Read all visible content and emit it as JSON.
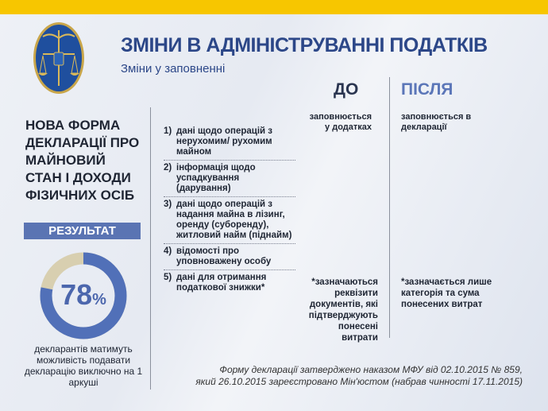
{
  "header": {
    "title": "ЗМІНИ В АДМІНІСТРУВАННІ ПОДАТКІВ",
    "subtitle": "Зміни у заповненні"
  },
  "columns": {
    "before": "ДО",
    "after": "ПІСЛЯ"
  },
  "left": {
    "heading": [
      "НОВА ФОРМА",
      "ДЕКЛАРАЦІЇ ПРО",
      "МАЙНОВИЙ",
      "СТАН І ДОХОДИ",
      "ФІЗИЧНИХ ОСІБ"
    ],
    "result_label": "РЕЗУЛЬТАТ",
    "percent": 78,
    "percent_text": "78",
    "percent_sign": "%",
    "note": "декларантів матимуть можливість подавати декларацію виключно на 1 аркуші",
    "colors": {
      "filled": "#5170b8",
      "rest": "#d8cfb0"
    }
  },
  "items": [
    {
      "num": "1)",
      "text": "дані щодо операцій з нерухомим/ рухомим майном"
    },
    {
      "num": "2)",
      "text": "інформація щодо успадкування (дарування)"
    },
    {
      "num": "3)",
      "text": "дані щодо операцій з надання майна в лізинг, оренду (суборенду), житловий найм (піднайм)"
    },
    {
      "num": "4)",
      "text": "відомості про уповноважену особу"
    },
    {
      "num": "5)",
      "text": "дані для отримання податкової знижки*"
    }
  ],
  "before": {
    "fill": "заповнюється у додатках",
    "note": "*зазначаються реквізити документів, які підтверджують понесені витрати"
  },
  "after": {
    "fill": "заповнюється в декларації",
    "note": "*зазначається лише категорія та сума понесених витрат"
  },
  "footer": {
    "line1": "Форму декларації затверджено наказом МФУ від 02.10.2015 № 859,",
    "line2": "який 26.10.2015 зареєстровано Мін'юстом (набрав чинності 17.11.2015)"
  },
  "accent": "#f7c600"
}
